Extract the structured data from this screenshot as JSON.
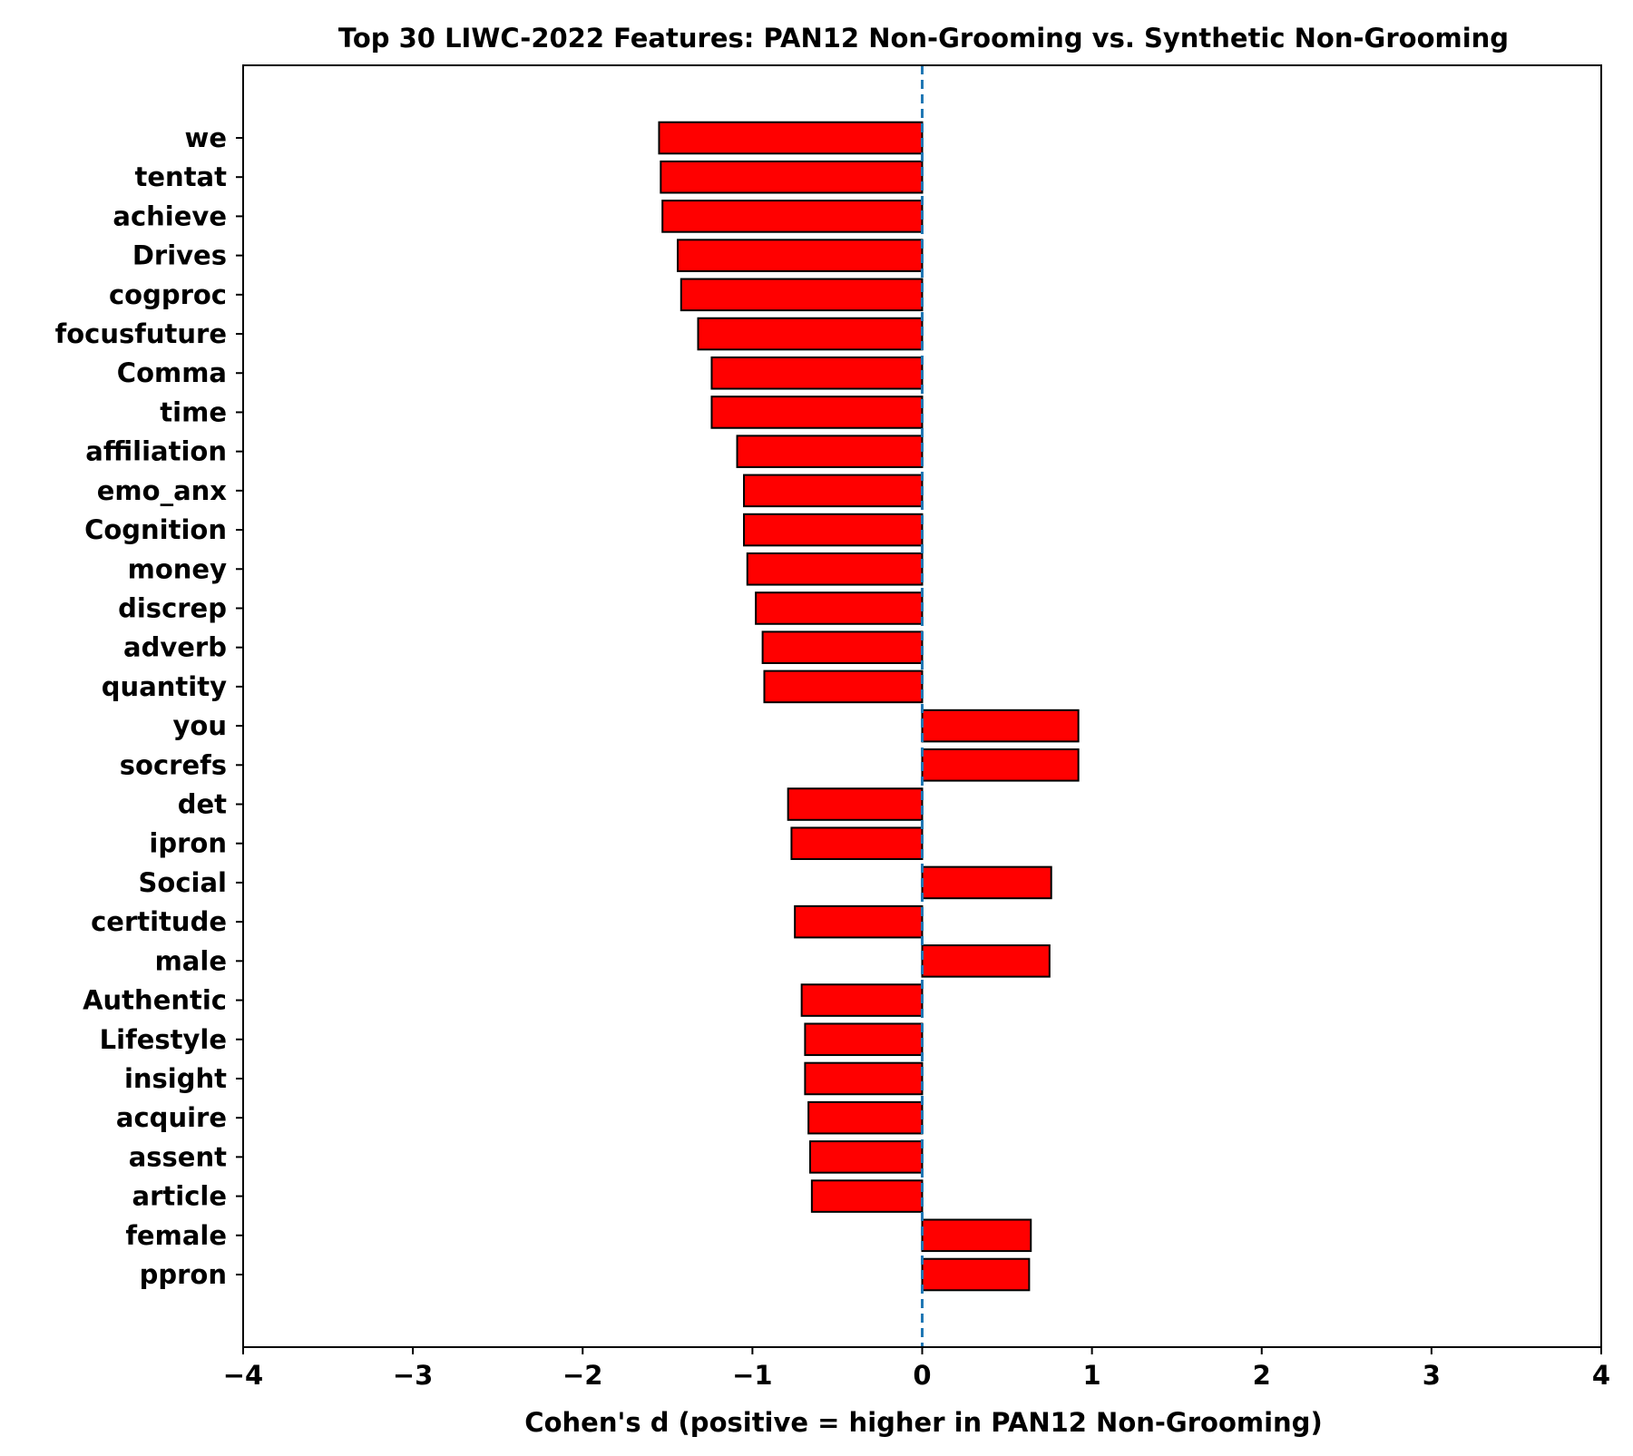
{
  "chart_data": {
    "type": "bar",
    "orientation": "horizontal",
    "title": "Top 30 LIWC-2022 Features: PAN12 Non-Grooming vs. Synthetic Non-Grooming",
    "xlabel": "Cohen's d (positive = higher in PAN12 Non-Grooming)",
    "ylabel": "",
    "xlim": [
      -4,
      4
    ],
    "xticks": [
      -4,
      -3,
      -2,
      -1,
      0,
      1,
      2,
      3,
      4
    ],
    "xtick_labels": [
      "−4",
      "−3",
      "−2",
      "−1",
      "0",
      "1",
      "2",
      "3",
      "4"
    ],
    "grid": false,
    "reference_line": {
      "x": 0,
      "style": "dashed",
      "color": "#1f77b4"
    },
    "bar_color": "#ff0000",
    "bar_edge_color": "#000000",
    "categories": [
      "we",
      "tentat",
      "achieve",
      "Drives",
      "cogproc",
      "focusfuture",
      "Comma",
      "time",
      "affiliation",
      "emo_anx",
      "Cognition",
      "money",
      "discrep",
      "adverb",
      "quantity",
      "you",
      "socrefs",
      "det",
      "ipron",
      "Social",
      "certitude",
      "male",
      "Authentic",
      "Lifestyle",
      "insight",
      "acquire",
      "assent",
      "article",
      "female",
      "ppron"
    ],
    "values": [
      -1.55,
      -1.54,
      -1.53,
      -1.44,
      -1.42,
      -1.32,
      -1.24,
      -1.24,
      -1.09,
      -1.05,
      -1.05,
      -1.03,
      -0.98,
      -0.94,
      -0.93,
      0.92,
      0.92,
      -0.79,
      -0.77,
      0.76,
      -0.75,
      0.75,
      -0.71,
      -0.69,
      -0.69,
      -0.67,
      -0.66,
      -0.65,
      0.64,
      0.63
    ]
  }
}
